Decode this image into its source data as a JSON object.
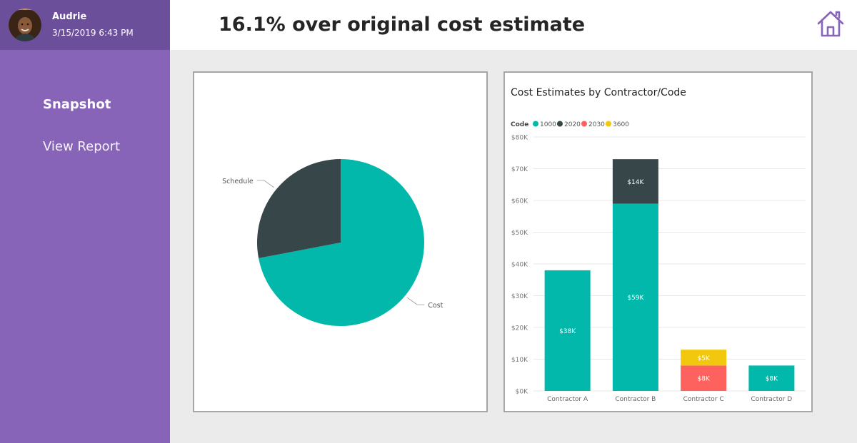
{
  "user": {
    "name": "Audrie",
    "datetime": "3/15/2019 6:43 PM"
  },
  "nav": {
    "items": [
      {
        "label": "Snapshot"
      },
      {
        "label": "View Report"
      }
    ]
  },
  "header": {
    "title": "16.1% over original cost estimate",
    "home_icon": "home-icon"
  },
  "colors": {
    "sidebar": "#8764b8",
    "user_bar": "#6c4f9b",
    "teal": "#01b8aa",
    "dark": "#374649",
    "red": "#fd625e",
    "yellow": "#f2c80f"
  },
  "chart_data": [
    {
      "type": "pie",
      "title": "",
      "slices": [
        {
          "label": "Cost",
          "value": 72
        },
        {
          "label": "Schedule",
          "value": 28
        }
      ]
    },
    {
      "type": "bar",
      "stacked": true,
      "title": "Cost Estimates by Contractor/Code",
      "legend_title": "Code",
      "legend_position": "top-left",
      "categories": [
        "Contractor A",
        "Contractor B",
        "Contractor C",
        "Contractor D"
      ],
      "series": [
        {
          "name": "1000",
          "values": [
            38,
            59,
            0,
            8
          ],
          "labels": [
            "$38K",
            "$59K",
            "",
            "$8K"
          ]
        },
        {
          "name": "2020",
          "values": [
            0,
            14,
            0,
            0
          ],
          "labels": [
            "",
            "$14K",
            "",
            ""
          ]
        },
        {
          "name": "2030",
          "values": [
            0,
            0,
            8,
            0
          ],
          "labels": [
            "",
            "",
            "$8K",
            ""
          ]
        },
        {
          "name": "3600",
          "values": [
            0,
            0,
            5,
            0
          ],
          "labels": [
            "",
            "",
            "$5K",
            ""
          ]
        }
      ],
      "yticks": [
        "$0K",
        "$10K",
        "$20K",
        "$30K",
        "$40K",
        "$50K",
        "$60K",
        "$70K",
        "$80K"
      ],
      "ylim": [
        0,
        80
      ],
      "units": "K",
      "grid": true
    }
  ]
}
